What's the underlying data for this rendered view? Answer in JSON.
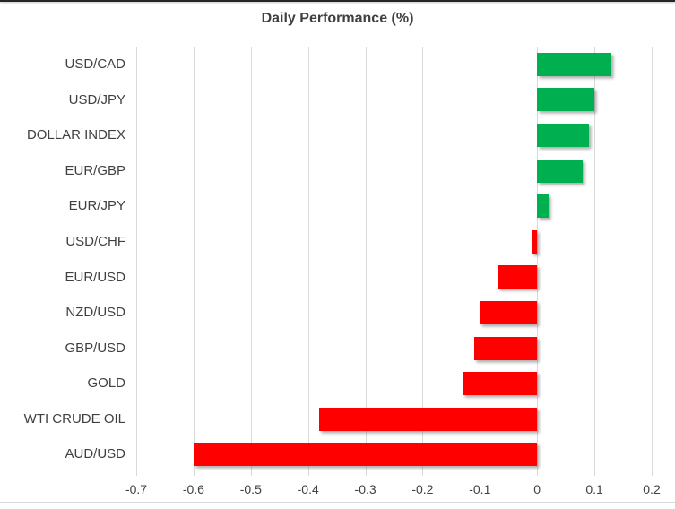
{
  "chart_data": {
    "type": "bar",
    "orientation": "horizontal",
    "title": "Daily Performance (%)",
    "categories": [
      "USD/CAD",
      "USD/JPY",
      "DOLLAR INDEX",
      "EUR/GBP",
      "EUR/JPY",
      "USD/CHF",
      "EUR/USD",
      "NZD/USD",
      "GBP/USD",
      "GOLD",
      "WTI CRUDE OIL",
      "AUD/USD"
    ],
    "values": [
      0.13,
      0.1,
      0.09,
      0.08,
      0.02,
      -0.01,
      -0.07,
      -0.1,
      -0.11,
      -0.13,
      -0.38,
      -0.6
    ],
    "xlabel": "",
    "ylabel": "",
    "xlim": [
      -0.7,
      0.2
    ],
    "xticks": [
      -0.7,
      -0.6,
      -0.5,
      -0.4,
      -0.3,
      -0.2,
      -0.1,
      0,
      0.1,
      0.2
    ],
    "xtick_labels": [
      "-0.7",
      "-0.6",
      "-0.5",
      "-0.4",
      "-0.3",
      "-0.2",
      "-0.1",
      "0",
      "0.1",
      "0.2"
    ],
    "grid": "vertical-only",
    "legend": "none",
    "colors": {
      "positive_bar": "#00B050",
      "negative_bar": "#FF0000",
      "gridline": "#d9d9d9",
      "text": "#404040",
      "title_text": "#3f3f3f",
      "top_border": "#262626",
      "bottom_border": "#d9d9d9",
      "background": "#ffffff"
    }
  }
}
